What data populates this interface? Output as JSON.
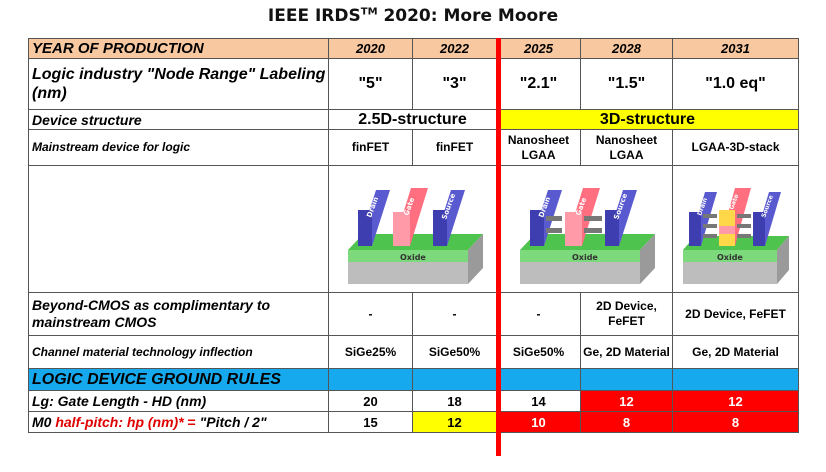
{
  "title": {
    "main": "IEEE IRDS",
    "sup": "TM",
    "rest": " 2020: More Moore"
  },
  "header": {
    "label": "YEAR OF PRODUCTION",
    "years": [
      "2020",
      "2022",
      "2025",
      "2028",
      "2031"
    ]
  },
  "node_range": {
    "label": "Logic industry \"Node Range\" Labeling (nm)",
    "values": [
      "\"5\"",
      "\"3\"",
      "\"2.1\"",
      "\"1.5\"",
      "\"1.0 eq\""
    ]
  },
  "device_structure": {
    "label": "Device structure",
    "left": "2.5D-structure",
    "right": "3D-structure"
  },
  "mainstream": {
    "label": "Mainstream device for logic",
    "values": [
      "finFET",
      "finFET",
      "Nanosheet LGAA",
      "Nanosheet LGAA",
      "LGAA-3D-stack"
    ]
  },
  "illustration": {
    "drain": "Drain",
    "gate": "Gate",
    "source": "Source",
    "oxide": "Oxide"
  },
  "beyond_cmos": {
    "label": "Beyond-CMOS as complimentary to mainstream CMOS",
    "values": [
      "-",
      "-",
      "-",
      "2D Device, FeFET",
      "2D Device, FeFET"
    ]
  },
  "channel": {
    "label": "Channel material technology inflection",
    "values": [
      "SiGe25%",
      "SiGe50%",
      "SiGe50%",
      "Ge, 2D Material",
      "Ge, 2D Material"
    ]
  },
  "rules": {
    "label": "LOGIC DEVICE GROUND RULES"
  },
  "lg": {
    "label": "Lg: Gate Length - HD (nm)",
    "values": [
      "20",
      "18",
      "14",
      "12",
      "12"
    ]
  },
  "m0": {
    "label_a": "M0 ",
    "label_b": "half-pitch: hp (nm)*",
    "label_c": "  =  ",
    "label_d": "\"Pitch / 2\"",
    "values": [
      "15",
      "12",
      "10",
      "8",
      "8"
    ]
  },
  "colors": {
    "header": "#f8c8a0",
    "highlight_yellow": "#ffff00",
    "highlight_red": "#ff0000",
    "rules_blue": "#17a9ee",
    "gate": "#ff6f7f",
    "drain_source": "#5a5ad0",
    "fin": "#4ec44e",
    "oxide": "#7cd97c"
  }
}
